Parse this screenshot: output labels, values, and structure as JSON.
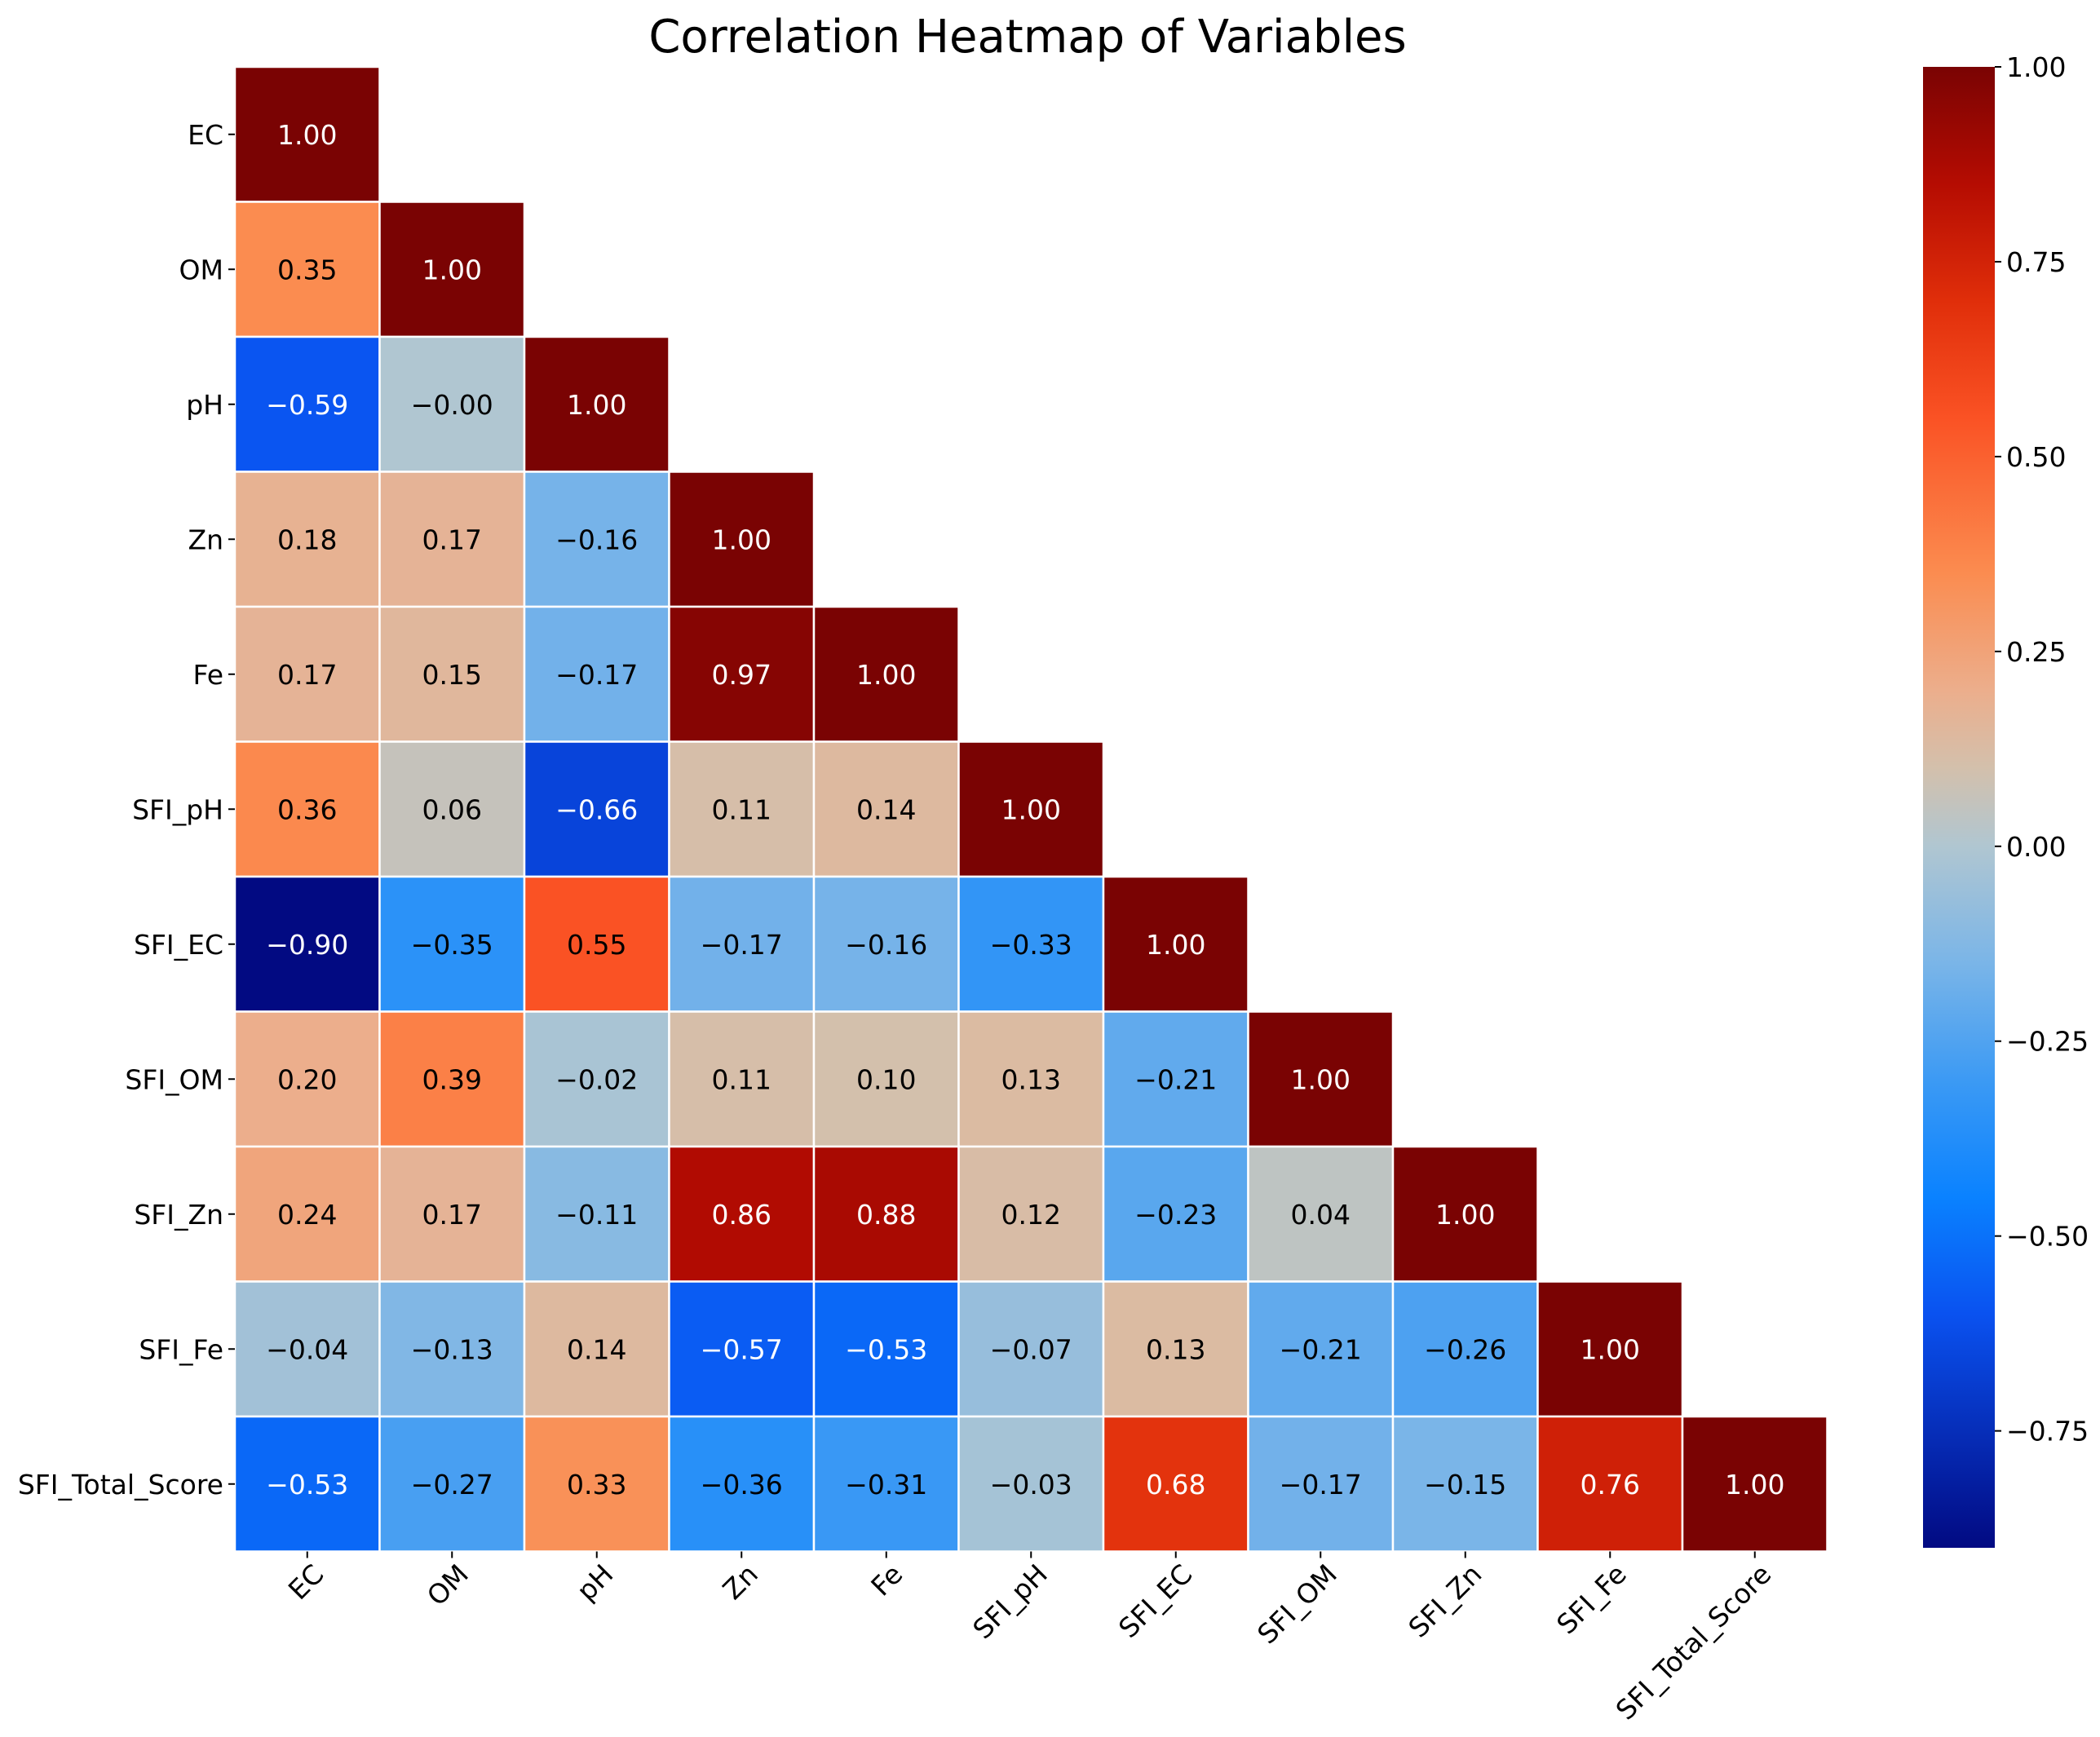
{
  "chart_data": {
    "type": "heatmap",
    "title": "Correlation Heatmap of Variables",
    "variables": [
      "EC",
      "OM",
      "pH",
      "Zn",
      "Fe",
      "SFI_pH",
      "SFI_EC",
      "SFI_OM",
      "SFI_Zn",
      "SFI_Fe",
      "SFI_Total_Score"
    ],
    "matrix_lower_triangle": [
      [
        1.0
      ],
      [
        0.35,
        1.0
      ],
      [
        -0.59,
        -0.0,
        1.0
      ],
      [
        0.18,
        0.17,
        -0.16,
        1.0
      ],
      [
        0.17,
        0.15,
        -0.17,
        0.97,
        1.0
      ],
      [
        0.36,
        0.06,
        -0.66,
        0.11,
        0.14,
        1.0
      ],
      [
        -0.9,
        -0.35,
        0.55,
        -0.17,
        -0.16,
        -0.33,
        1.0
      ],
      [
        0.2,
        0.39,
        -0.02,
        0.11,
        0.1,
        0.13,
        -0.21,
        1.0
      ],
      [
        0.24,
        0.17,
        -0.11,
        0.86,
        0.88,
        0.12,
        -0.23,
        0.04,
        1.0
      ],
      [
        -0.04,
        -0.13,
        0.14,
        -0.57,
        -0.53,
        -0.07,
        0.13,
        -0.21,
        -0.26,
        1.0
      ],
      [
        -0.53,
        -0.27,
        0.33,
        -0.36,
        -0.31,
        -0.03,
        0.68,
        -0.17,
        -0.15,
        0.76,
        1.0
      ]
    ],
    "cell_labels_lower_triangle": [
      [
        "1.00"
      ],
      [
        "0.35",
        "1.00"
      ],
      [
        "−0.59",
        "−0.00",
        "1.00"
      ],
      [
        "0.18",
        "0.17",
        "−0.16",
        "1.00"
      ],
      [
        "0.17",
        "0.15",
        "−0.17",
        "0.97",
        "1.00"
      ],
      [
        "0.36",
        "0.06",
        "−0.66",
        "0.11",
        "0.14",
        "1.00"
      ],
      [
        "−0.90",
        "−0.35",
        "0.55",
        "−0.17",
        "−0.16",
        "−0.33",
        "1.00"
      ],
      [
        "0.20",
        "0.39",
        "−0.02",
        "0.11",
        "0.10",
        "0.13",
        "−0.21",
        "1.00"
      ],
      [
        "0.24",
        "0.17",
        "−0.11",
        "0.86",
        "0.88",
        "0.12",
        "−0.23",
        "0.04",
        "1.00"
      ],
      [
        "−0.04",
        "−0.13",
        "0.14",
        "−0.57",
        "−0.53",
        "−0.07",
        "0.13",
        "−0.21",
        "−0.26",
        "1.00"
      ],
      [
        "−0.53",
        "−0.27",
        "0.33",
        "−0.36",
        "−0.31",
        "−0.03",
        "0.68",
        "−0.17",
        "−0.15",
        "0.76",
        "1.00"
      ]
    ],
    "colorbar": {
      "colormap": "blue-white-red (diverging)",
      "vmin": -0.9,
      "vmax": 1.0,
      "ticks": [
        -0.75,
        -0.5,
        -0.25,
        0.0,
        0.25,
        0.5,
        0.75,
        1.0
      ],
      "tick_labels": [
        "−0.75",
        "−0.50",
        "−0.25",
        "0.00",
        "0.25",
        "0.50",
        "0.75",
        "1.00"
      ],
      "colors": {
        "stop_-0.90": "#020a82",
        "stop_-0.60": "#0a52f0",
        "stop_-0.45": "#0a82ff",
        "stop_-0.30": "#3c9af4",
        "stop_-0.15": "#7ab5e8",
        "stop_0.00": "#b0c6d1",
        "stop_0.10": "#d3c0ac",
        "stop_0.20": "#ecae8c",
        "stop_0.35": "#fb8c50",
        "stop_0.55": "#fa5224",
        "stop_0.70": "#e02e0a",
        "stop_0.85": "#b50c02",
        "stop_1.00": "#7a0303"
      }
    },
    "label_colors": {
      "dark_text": "#000000",
      "light_text": "#ffffff"
    },
    "mask": "upper triangle hidden",
    "grid_lines": "white"
  }
}
